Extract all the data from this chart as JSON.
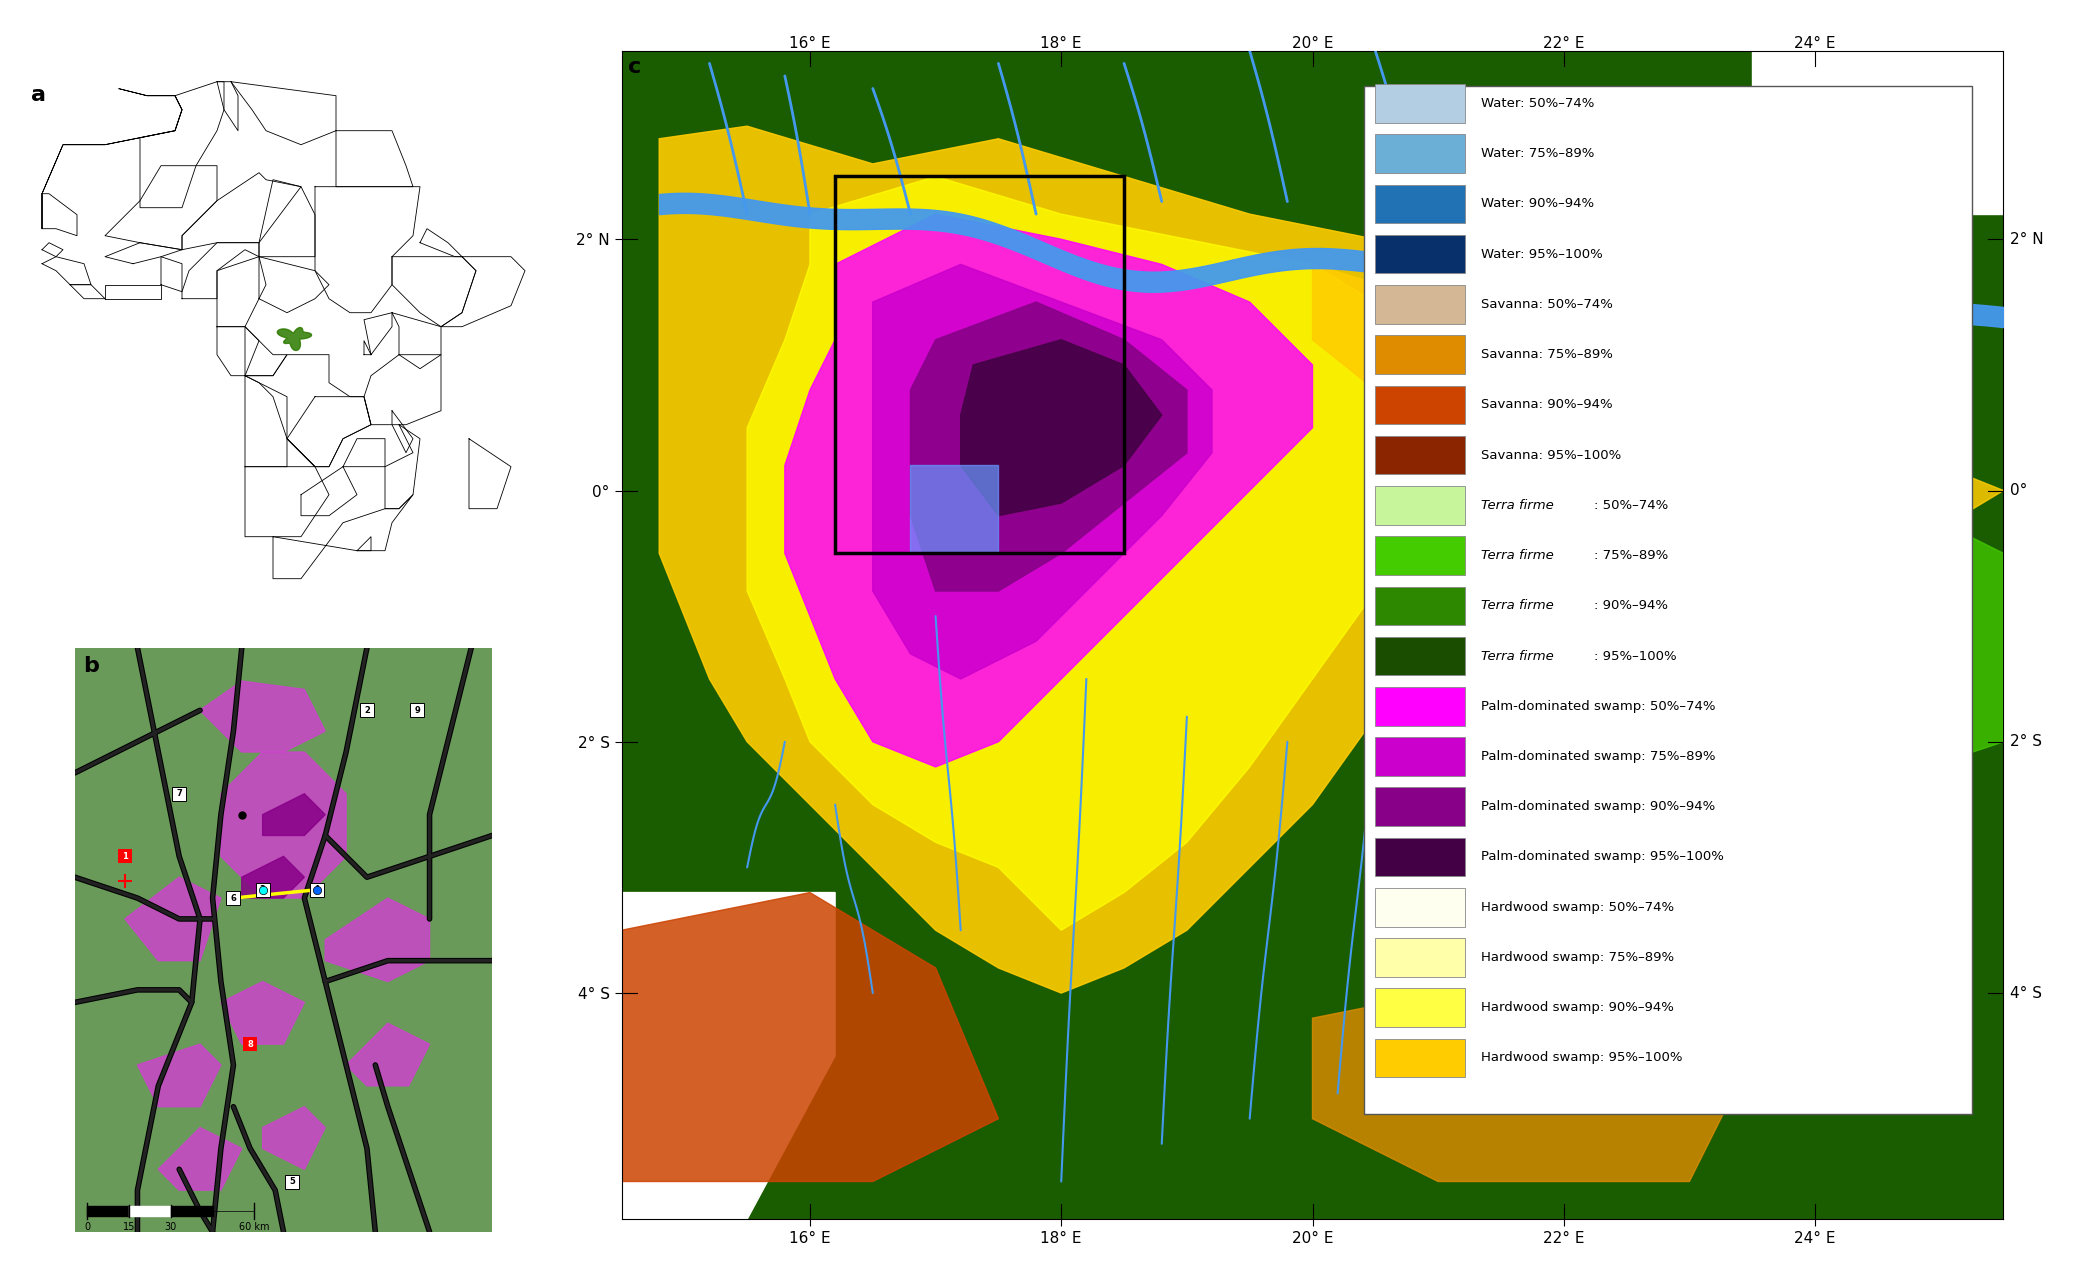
{
  "legend_entries": [
    {
      "label": "Water: 50%–74%",
      "color": "#b3cde3",
      "italic": false
    },
    {
      "label": "Water: 75%–89%",
      "color": "#6baed6",
      "italic": false
    },
    {
      "label": "Water: 90%–94%",
      "color": "#2171b5",
      "italic": false
    },
    {
      "label": "Water: 95%–100%",
      "color": "#08306b",
      "italic": false
    },
    {
      "label": "Savanna: 50%–74%",
      "color": "#d4b896",
      "italic": false
    },
    {
      "label": "Savanna: 75%–89%",
      "color": "#e08c00",
      "italic": false
    },
    {
      "label": "Savanna: 90%–94%",
      "color": "#cc4400",
      "italic": false
    },
    {
      "label": "Savanna: 95%–100%",
      "color": "#8b2500",
      "italic": false
    },
    {
      "label": "Terra firme: 50%–74%",
      "color": "#c7f59b",
      "italic": true
    },
    {
      "label": "Terra firme: 75%–89%",
      "color": "#44cc00",
      "italic": true
    },
    {
      "label": "Terra firme: 90%–94%",
      "color": "#2d8800",
      "italic": true
    },
    {
      "label": "Terra firme: 95%–100%",
      "color": "#1a4d00",
      "italic": true
    },
    {
      "label": "Palm-dominated swamp: 50%–74%",
      "color": "#ff00ff",
      "italic": false
    },
    {
      "label": "Palm-dominated swamp: 75%–89%",
      "color": "#cc00cc",
      "italic": false
    },
    {
      "label": "Palm-dominated swamp: 90%–94%",
      "color": "#880088",
      "italic": false
    },
    {
      "label": "Palm-dominated swamp: 95%–100%",
      "color": "#440044",
      "italic": false
    },
    {
      "label": "Hardwood swamp: 50%–74%",
      "color": "#fffff0",
      "italic": false
    },
    {
      "label": "Hardwood swamp: 75%–89%",
      "color": "#ffffaa",
      "italic": false
    },
    {
      "label": "Hardwood swamp: 90%–94%",
      "color": "#ffff44",
      "italic": false
    },
    {
      "label": "Hardwood swamp: 95%–100%",
      "color": "#ffcc00",
      "italic": false
    }
  ],
  "map_bg_color": "#1a5c00",
  "lon_min": 14.5,
  "lon_max": 25.5,
  "lat_min": -5.8,
  "lat_max": 3.5,
  "lon_ticks": [
    16,
    18,
    20,
    22,
    24
  ],
  "lat_ticks": [
    2,
    0,
    -2,
    -4
  ],
  "lon_labels": [
    "16° E",
    "18° E",
    "20° E",
    "22° E",
    "24° E"
  ],
  "lat_labels": [
    "2° N",
    "0°",
    "2° S",
    "4° S"
  ]
}
